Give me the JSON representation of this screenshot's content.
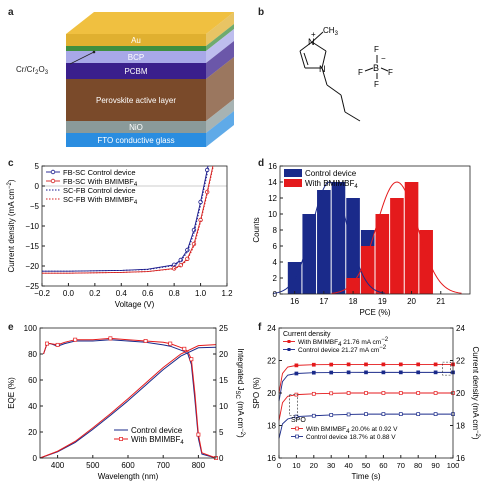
{
  "panels": {
    "a": "a",
    "b": "b",
    "c": "c",
    "d": "d",
    "e": "e",
    "f": "f"
  },
  "device_stack": {
    "layers": [
      {
        "label": "Au",
        "color": "#e0b030"
      },
      {
        "label": "",
        "color": "#3f8f3f"
      },
      {
        "label": "BCP",
        "color": "#a8a8e8"
      },
      {
        "label": "PCBM",
        "color": "#3a1f8c"
      },
      {
        "label": "Perovskite active layer",
        "color": "#7a4a2a"
      },
      {
        "label": "NiO",
        "color": "#8a9a9a"
      },
      {
        "label": "FTO conductive glass",
        "color": "#2a8de0"
      }
    ],
    "side_label_main": "Cr/Cr",
    "side_label_sub": "2",
    "side_label_main2": "O",
    "side_label_sub2": "3"
  },
  "molecule": {
    "plus": "+",
    "ch3": "CH",
    "ch3_sub": "3",
    "n1": "N",
    "n2": "N",
    "f_labels": [
      "F",
      "F",
      "F",
      "F"
    ],
    "b_label": "B",
    "minus": "−"
  },
  "chart_data": [
    {
      "panel": "c",
      "type": "line",
      "xlabel": "Voltage (V)",
      "ylabel": "Current density (mA cm",
      "ylabel_sup": "−2",
      "ylabel_end": ")",
      "xlim": [
        -0.2,
        1.2
      ],
      "ylim": [
        -25,
        5
      ],
      "xticks": [
        "−0.2",
        "0.0",
        "0.2",
        "0.4",
        "0.6",
        "0.8",
        "1.0",
        "1.2"
      ],
      "yticks": [
        "−25",
        "−20",
        "−15",
        "−10",
        "−5",
        "0",
        "5"
      ],
      "legend": [
        "FB-SC Control device",
        "FB-SC With BMIMBF",
        "SC-FB Control device",
        "SC-FB With BMIMBF"
      ],
      "legend_sub": "4",
      "series": [
        {
          "name": "FB-SC Control device",
          "color": "#1a1a8c",
          "style": "solid-marker",
          "x": [
            -0.2,
            0,
            0.2,
            0.4,
            0.6,
            0.8,
            0.85,
            0.9,
            0.95,
            1.0,
            1.05,
            1.08
          ],
          "y": [
            -21.3,
            -21.3,
            -21.2,
            -21.1,
            -20.8,
            -19.7,
            -18.5,
            -16,
            -11,
            -4,
            4,
            9
          ]
        },
        {
          "name": "FB-SC With BMIMBF4",
          "color": "#d42020",
          "style": "solid-marker",
          "x": [
            -0.2,
            0,
            0.2,
            0.4,
            0.6,
            0.8,
            0.85,
            0.9,
            0.95,
            1.0,
            1.05,
            1.1,
            1.13
          ],
          "y": [
            -21.8,
            -21.8,
            -21.7,
            -21.6,
            -21.4,
            -20.6,
            -19.8,
            -18.2,
            -14.5,
            -8.5,
            -1.5,
            6,
            10
          ]
        },
        {
          "name": "SC-FB Control device",
          "color": "#1a1a8c",
          "style": "dotted",
          "x": [
            -0.2,
            0,
            0.2,
            0.4,
            0.6,
            0.8,
            0.85,
            0.9,
            0.95,
            1.0,
            1.05,
            1.08
          ],
          "y": [
            -21.3,
            -21.3,
            -21.2,
            -21.1,
            -20.9,
            -19.9,
            -18.8,
            -16.5,
            -11.8,
            -4.8,
            3,
            8
          ]
        },
        {
          "name": "SC-FB With BMIMBF4",
          "color": "#d42020",
          "style": "dotted",
          "x": [
            -0.2,
            0,
            0.2,
            0.4,
            0.6,
            0.8,
            0.85,
            0.9,
            0.95,
            1.0,
            1.05,
            1.1,
            1.13
          ],
          "y": [
            -21.8,
            -21.8,
            -21.7,
            -21.6,
            -21.4,
            -20.7,
            -20,
            -18.5,
            -15,
            -9,
            -2,
            5.5,
            10
          ]
        }
      ]
    },
    {
      "panel": "d",
      "type": "bar",
      "xlabel": "PCE (%)",
      "ylabel": "Counts",
      "xlim": [
        15.5,
        22
      ],
      "ylim": [
        0,
        16
      ],
      "xticks": [
        "16",
        "17",
        "18",
        "19",
        "20",
        "21"
      ],
      "yticks": [
        "0",
        "2",
        "4",
        "6",
        "8",
        "10",
        "12",
        "14",
        "16"
      ],
      "legend": [
        "Control device",
        "With BMIMBF"
      ],
      "legend_sub": "4",
      "series": [
        {
          "name": "Control device",
          "color": "#1a2a8a",
          "bins": [
            16,
            16.5,
            17,
            17.5,
            18,
            18.5
          ],
          "values": [
            4,
            10,
            13,
            14,
            12,
            8
          ]
        },
        {
          "name": "With BMIMBF4",
          "color": "#e41a1c",
          "bins": [
            18,
            18.5,
            19,
            19.5,
            20,
            20.5
          ],
          "values": [
            2,
            6,
            10,
            12,
            14,
            8
          ]
        }
      ],
      "fits": [
        {
          "color": "#1a2a8a",
          "mean": 17.2,
          "sd": 0.6,
          "peak": 14
        },
        {
          "color": "#e41a1c",
          "mean": 19.5,
          "sd": 0.7,
          "peak": 14
        }
      ]
    },
    {
      "panel": "e",
      "type": "line",
      "xlabel": "Wavelength (nm)",
      "ylabel": "EQE (%)",
      "ylabel_right": "Integrated J",
      "ylabel_right_sub": "SC",
      "ylabel_right_end": " (mA cm",
      "ylabel_right_sup": "−2",
      "ylabel_right_close": ")",
      "xlim": [
        350,
        850
      ],
      "ylim": [
        0,
        100
      ],
      "ylim_right": [
        0,
        25
      ],
      "xticks": [
        "400",
        "500",
        "600",
        "700",
        "800"
      ],
      "yticks": [
        "0",
        "20",
        "40",
        "60",
        "80",
        "100"
      ],
      "yticks_right": [
        "0",
        "5",
        "10",
        "15",
        "20",
        "25"
      ],
      "legend": [
        "Control device",
        "With BMIMBF"
      ],
      "legend_sub": "4",
      "series": [
        {
          "name": "Control device",
          "color": "#1a2a8a",
          "axis": "left",
          "x": [
            360,
            370,
            380,
            400,
            420,
            450,
            500,
            550,
            600,
            650,
            700,
            720,
            740,
            760,
            770,
            780,
            790,
            800,
            810,
            850
          ],
          "y": [
            80,
            88,
            88,
            86,
            88,
            90,
            90,
            91,
            90,
            89,
            87,
            86,
            84,
            82,
            80,
            72,
            45,
            15,
            3,
            0
          ]
        },
        {
          "name": "With BMIMBF4",
          "color": "#e41a1c",
          "axis": "left",
          "x": [
            360,
            370,
            380,
            400,
            420,
            450,
            500,
            550,
            600,
            650,
            700,
            720,
            740,
            760,
            770,
            780,
            790,
            800,
            810,
            850
          ],
          "y": [
            80,
            88,
            88,
            87,
            89,
            91,
            91,
            92,
            91,
            90,
            89,
            88,
            86,
            84,
            82,
            76,
            50,
            18,
            4,
            0
          ]
        },
        {
          "name": "Control integrated",
          "color": "#1a2a8a",
          "axis": "right",
          "x": [
            350,
            400,
            450,
            500,
            550,
            600,
            650,
            700,
            750,
            800,
            850
          ],
          "y": [
            0,
            1.2,
            3,
            5.5,
            8.2,
            11,
            14,
            17,
            19.6,
            21.2,
            21.3
          ]
        },
        {
          "name": "With BMIMBF4 integrated",
          "color": "#e41a1c",
          "axis": "right",
          "x": [
            350,
            400,
            450,
            500,
            550,
            600,
            650,
            700,
            750,
            800,
            850
          ],
          "y": [
            0,
            1.3,
            3.2,
            5.8,
            8.5,
            11.4,
            14.4,
            17.4,
            20,
            21.6,
            21.8
          ]
        }
      ]
    },
    {
      "panel": "f",
      "type": "line",
      "xlabel": "Time (s)",
      "ylabel": "SPO (%)",
      "ylabel_right": "Current density (mA cm",
      "ylabel_right_sup": "−2",
      "ylabel_right_end": ")",
      "xlim": [
        0,
        100
      ],
      "ylim": [
        16,
        24
      ],
      "ylim_right": [
        16,
        24
      ],
      "xticks": [
        "0",
        "10",
        "20",
        "30",
        "40",
        "50",
        "60",
        "70",
        "80",
        "90",
        "100"
      ],
      "yticks": [
        "16",
        "18",
        "20",
        "22",
        "24"
      ],
      "yticks_right": [
        "16",
        "18",
        "20",
        "22",
        "24"
      ],
      "annotation_cd": "Current density",
      "annotation_spo": "SPO",
      "legend_cd": [
        {
          "text": "With BMIMBF",
          "sub": "4",
          "rest": " 21.76 mA cm",
          "sup": "−2"
        },
        {
          "text": "Control device 21.27 mA cm",
          "sub": "",
          "rest": "",
          "sup": "−2"
        }
      ],
      "legend_spo": [
        {
          "text": "With BMIMBF",
          "sub": "4",
          "rest": " 20.0% at 0.92 V"
        },
        {
          "text": "Control device 18.7% at 0.88 V",
          "sub": "",
          "rest": ""
        }
      ],
      "series": [
        {
          "name": "With BMIMBF4 current density",
          "color": "#e41a1c",
          "filled": true,
          "x": [
            0,
            2,
            5,
            10,
            20,
            30,
            40,
            50,
            60,
            70,
            80,
            90,
            100
          ],
          "y": [
            20,
            21.2,
            21.6,
            21.7,
            21.74,
            21.75,
            21.76,
            21.76,
            21.76,
            21.76,
            21.76,
            21.76,
            21.76
          ]
        },
        {
          "name": "Control current density",
          "color": "#1a2a8a",
          "filled": true,
          "x": [
            0,
            2,
            5,
            10,
            20,
            30,
            40,
            50,
            60,
            70,
            80,
            90,
            100
          ],
          "y": [
            19.5,
            20.7,
            21.1,
            21.2,
            21.25,
            21.26,
            21.27,
            21.27,
            21.27,
            21.27,
            21.27,
            21.27,
            21.27
          ]
        },
        {
          "name": "With BMIMBF4 SPO",
          "color": "#e41a1c",
          "filled": false,
          "x": [
            0,
            2,
            5,
            10,
            20,
            30,
            40,
            50,
            60,
            70,
            80,
            90,
            100
          ],
          "y": [
            18.3,
            19.4,
            19.8,
            19.9,
            19.95,
            19.98,
            20,
            20,
            20,
            20,
            20,
            20,
            20
          ]
        },
        {
          "name": "Control SPO",
          "color": "#1a2a8a",
          "filled": false,
          "x": [
            0,
            2,
            5,
            10,
            20,
            30,
            40,
            50,
            60,
            70,
            80,
            90,
            100
          ],
          "y": [
            17.2,
            18.1,
            18.4,
            18.55,
            18.6,
            18.65,
            18.68,
            18.7,
            18.7,
            18.7,
            18.7,
            18.7,
            18.7
          ]
        }
      ]
    }
  ]
}
